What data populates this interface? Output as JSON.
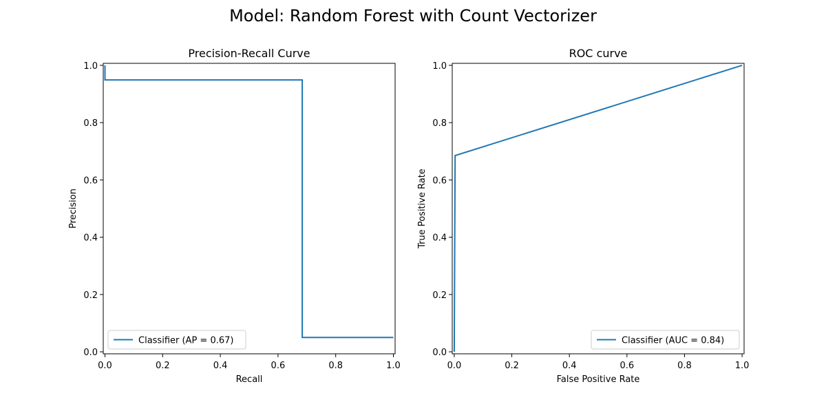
{
  "figure": {
    "suptitle": "Model: Random Forest with Count Vectorizer"
  },
  "chart_data": [
    {
      "type": "line",
      "title": "Precision-Recall Curve",
      "xlabel": "Recall",
      "ylabel": "Precision",
      "xlim": [
        -0.006,
        1.006
      ],
      "ylim": [
        -0.007,
        1.007
      ],
      "xticks": [
        0.0,
        0.2,
        0.4,
        0.6,
        0.8,
        1.0
      ],
      "yticks": [
        0.0,
        0.2,
        0.4,
        0.6,
        0.8,
        1.0
      ],
      "xtick_labels": [
        "0.0",
        "0.2",
        "0.4",
        "0.6",
        "0.8",
        "1.0"
      ],
      "ytick_labels": [
        "0.0",
        "0.2",
        "0.4",
        "0.6",
        "0.8",
        "1.0"
      ],
      "grid": false,
      "legend_position": "lower-left",
      "series": [
        {
          "name": "Classifier (AP = 0.67)",
          "color": "#1f77b4",
          "drawstyle": "steps-post",
          "x": [
            0.0,
            0.0,
            0.684,
            0.684,
            1.0
          ],
          "y": [
            1.0,
            0.949,
            0.949,
            0.05,
            0.05
          ]
        }
      ]
    },
    {
      "type": "line",
      "title": "ROC curve",
      "xlabel": "False Positive Rate",
      "ylabel": "True Positive Rate",
      "xlim": [
        -0.007,
        1.007
      ],
      "ylim": [
        -0.007,
        1.007
      ],
      "xticks": [
        0.0,
        0.2,
        0.4,
        0.6,
        0.8,
        1.0
      ],
      "yticks": [
        0.0,
        0.2,
        0.4,
        0.6,
        0.8,
        1.0
      ],
      "xtick_labels": [
        "0.0",
        "0.2",
        "0.4",
        "0.6",
        "0.8",
        "1.0"
      ],
      "ytick_labels": [
        "0.0",
        "0.2",
        "0.4",
        "0.6",
        "0.8",
        "1.0"
      ],
      "grid": false,
      "legend_position": "lower-right",
      "series": [
        {
          "name": "Classifier (AUC = 0.84)",
          "color": "#1f77b4",
          "drawstyle": "default",
          "x": [
            0.0,
            0.003,
            1.0
          ],
          "y": [
            0.0,
            0.685,
            1.0
          ]
        }
      ]
    }
  ]
}
